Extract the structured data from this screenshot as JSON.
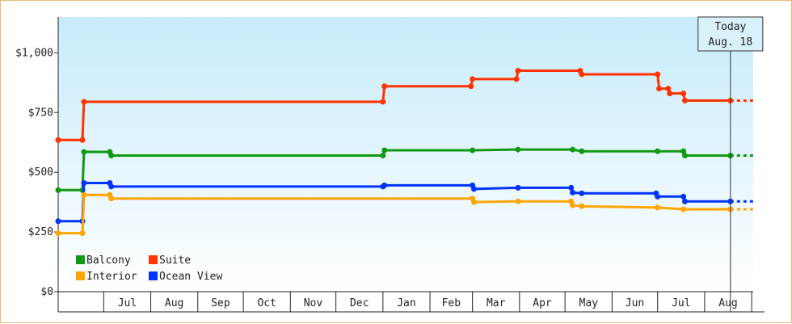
{
  "chart_data": {
    "type": "line",
    "title": "",
    "xlabel": "",
    "ylabel": "",
    "ylim": [
      0,
      1150
    ],
    "yticks": [
      {
        "value": 0,
        "label": "$0"
      },
      {
        "value": 250,
        "label": "$250"
      },
      {
        "value": 500,
        "label": "$500"
      },
      {
        "value": 750,
        "label": "$750"
      },
      {
        "value": 1000,
        "label": "$1,000"
      }
    ],
    "xlim": [
      "2016-06-01",
      "2017-09-02"
    ],
    "months": [
      "Jul",
      "Aug",
      "Sep",
      "Oct",
      "Nov",
      "Dec",
      "Jan",
      "Feb",
      "Mar",
      "Apr",
      "May",
      "Jun",
      "Jul",
      "Aug"
    ],
    "month_starts": [
      "2016-06-01",
      "2016-07-01",
      "2016-08-01",
      "2016-09-01",
      "2016-10-01",
      "2016-11-01",
      "2016-12-01",
      "2017-01-01",
      "2017-02-01",
      "2017-03-01",
      "2017-04-01",
      "2017-05-01",
      "2017-06-01",
      "2017-07-01",
      "2017-08-01",
      "2017-09-01"
    ],
    "today": {
      "line1": "Today",
      "line2": "Aug. 18",
      "date": "2017-08-18"
    },
    "projection_end": "2017-09-02",
    "legend": {
      "position": "bottom-left"
    },
    "grid": false,
    "series": [
      {
        "name": "Suite",
        "color": "#ff3300",
        "points": [
          [
            "2016-06-01",
            635
          ],
          [
            "2016-06-17",
            635
          ],
          [
            "2016-06-18",
            795
          ],
          [
            "2017-01-01",
            795
          ],
          [
            "2017-01-02",
            860
          ],
          [
            "2017-02-28",
            860
          ],
          [
            "2017-03-01",
            890
          ],
          [
            "2017-03-30",
            890
          ],
          [
            "2017-03-31",
            925
          ],
          [
            "2017-05-11",
            925
          ],
          [
            "2017-05-12",
            910
          ],
          [
            "2017-07-01",
            910
          ],
          [
            "2017-07-02",
            850
          ],
          [
            "2017-07-08",
            850
          ],
          [
            "2017-07-09",
            830
          ],
          [
            "2017-07-18",
            830
          ],
          [
            "2017-07-19",
            800
          ],
          [
            "2017-08-18",
            800
          ]
        ]
      },
      {
        "name": "Balcony",
        "color": "#119911",
        "points": [
          [
            "2016-06-01",
            425
          ],
          [
            "2016-06-17",
            425
          ],
          [
            "2016-06-18",
            585
          ],
          [
            "2016-07-05",
            585
          ],
          [
            "2016-07-06",
            570
          ],
          [
            "2017-01-01",
            570
          ],
          [
            "2017-01-02",
            592
          ],
          [
            "2017-03-01",
            592
          ],
          [
            "2017-03-31",
            595
          ],
          [
            "2017-05-06",
            595
          ],
          [
            "2017-05-12",
            588
          ],
          [
            "2017-07-01",
            588
          ],
          [
            "2017-07-18",
            588
          ],
          [
            "2017-07-19",
            570
          ],
          [
            "2017-08-18",
            570
          ]
        ]
      },
      {
        "name": "Ocean View",
        "color": "#0033ff",
        "points": [
          [
            "2016-06-01",
            295
          ],
          [
            "2016-06-17",
            295
          ],
          [
            "2016-06-18",
            455
          ],
          [
            "2016-07-05",
            455
          ],
          [
            "2016-07-06",
            440
          ],
          [
            "2017-01-01",
            440
          ],
          [
            "2017-01-02",
            445
          ],
          [
            "2017-03-01",
            445
          ],
          [
            "2017-03-02",
            430
          ],
          [
            "2017-03-31",
            435
          ],
          [
            "2017-05-05",
            435
          ],
          [
            "2017-05-06",
            415
          ],
          [
            "2017-05-12",
            412
          ],
          [
            "2017-06-30",
            412
          ],
          [
            "2017-07-01",
            398
          ],
          [
            "2017-07-18",
            398
          ],
          [
            "2017-07-19",
            378
          ],
          [
            "2017-08-18",
            378
          ]
        ]
      },
      {
        "name": "Interior",
        "color": "#ffa500",
        "points": [
          [
            "2016-06-01",
            245
          ],
          [
            "2016-06-17",
            245
          ],
          [
            "2016-06-18",
            405
          ],
          [
            "2016-07-05",
            405
          ],
          [
            "2016-07-06",
            390
          ],
          [
            "2017-03-01",
            390
          ],
          [
            "2017-03-02",
            375
          ],
          [
            "2017-03-31",
            378
          ],
          [
            "2017-05-05",
            378
          ],
          [
            "2017-05-06",
            362
          ],
          [
            "2017-05-12",
            358
          ],
          [
            "2017-07-01",
            352
          ],
          [
            "2017-07-18",
            345
          ],
          [
            "2017-08-18",
            345
          ]
        ]
      }
    ],
    "legend_order": [
      "Balcony",
      "Suite",
      "Interior",
      "Ocean View"
    ]
  }
}
